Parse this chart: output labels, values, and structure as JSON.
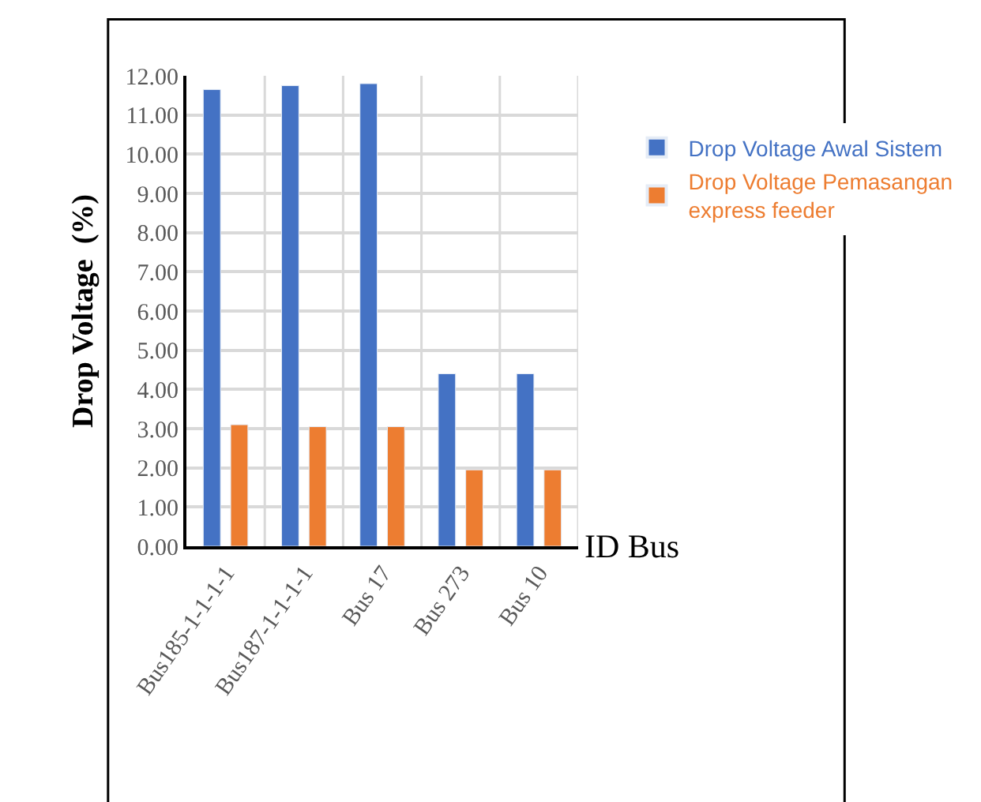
{
  "chart_data": {
    "type": "bar",
    "ylabel": "Drop Voltage  (%)",
    "xlabel": "ID Bus",
    "categories": [
      "Bus185-1-1-1-1",
      "Bus187-1-1-1-1",
      "Bus 17",
      "Bus 273",
      "Bus 10"
    ],
    "series": [
      {
        "name": "Drop Voltage Awal Sistem",
        "color": "#4472c4",
        "values": [
          11.65,
          11.75,
          11.8,
          4.4,
          4.4
        ]
      },
      {
        "name": "Drop Voltage Pemasangan express feeder",
        "color": "#ed7d31",
        "values": [
          3.1,
          3.05,
          3.05,
          1.95,
          1.95
        ]
      }
    ],
    "ylim": [
      0,
      12
    ],
    "yticks": [
      {
        "value": 0,
        "label": "0.00"
      },
      {
        "value": 1,
        "label": "1.00"
      },
      {
        "value": 2,
        "label": "2.00"
      },
      {
        "value": 3,
        "label": "3.00"
      },
      {
        "value": 4,
        "label": "4.00"
      },
      {
        "value": 5,
        "label": "5.00"
      },
      {
        "value": 6,
        "label": "6.00"
      },
      {
        "value": 7,
        "label": "7.00"
      },
      {
        "value": 8,
        "label": "8.00"
      },
      {
        "value": 9,
        "label": "9.00"
      },
      {
        "value": 10,
        "label": "10.00"
      },
      {
        "value": 11,
        "label": "11.00"
      },
      {
        "value": 12,
        "label": "12.00"
      }
    ],
    "grid": true,
    "legend": "right"
  }
}
